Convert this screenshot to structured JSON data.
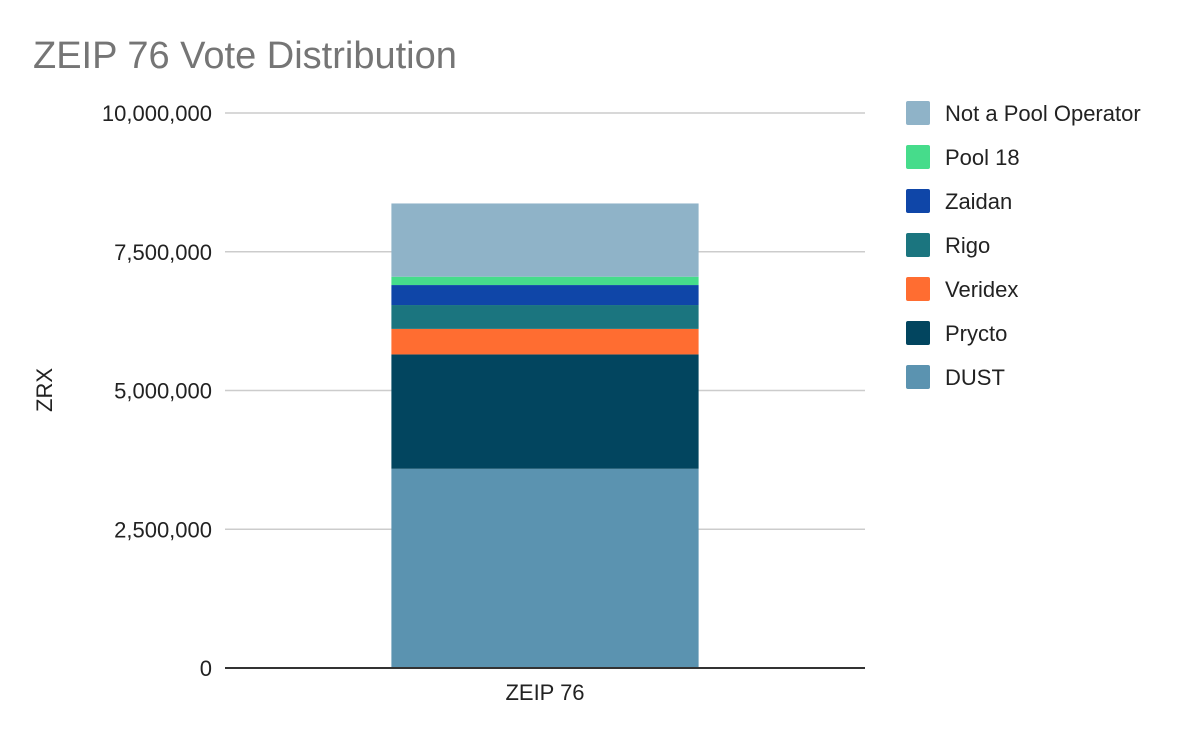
{
  "chart_data": {
    "type": "bar",
    "stacked": true,
    "title": "ZEIP 76 Vote Distribution",
    "xlabel": "",
    "ylabel": "ZRX",
    "categories": [
      "ZEIP 76"
    ],
    "ylim": [
      0,
      10000000
    ],
    "yticks": [
      0,
      2500000,
      5000000,
      7500000,
      10000000
    ],
    "ytick_labels": [
      "0",
      "2,500,000",
      "5,000,000",
      "7,500,000",
      "10,000,000"
    ],
    "grid": true,
    "legend_position": "right",
    "series": [
      {
        "name": "DUST",
        "values": [
          3590000
        ],
        "color": "#5b93b0"
      },
      {
        "name": "Prycto",
        "values": [
          2060000
        ],
        "color": "#02455f"
      },
      {
        "name": "Veridex",
        "values": [
          460000
        ],
        "color": "#ff6d31"
      },
      {
        "name": "Rigo",
        "values": [
          430000
        ],
        "color": "#1b757f"
      },
      {
        "name": "Zaidan",
        "values": [
          360000
        ],
        "color": "#0f46a8"
      },
      {
        "name": "Pool 18",
        "values": [
          150000
        ],
        "color": "#46dc8b"
      },
      {
        "name": "Not a Pool Operator",
        "values": [
          1320000
        ],
        "color": "#8fb3c8"
      }
    ],
    "legend_order": [
      "Not a Pool Operator",
      "Pool 18",
      "Zaidan",
      "Rigo",
      "Veridex",
      "Prycto",
      "DUST"
    ]
  }
}
